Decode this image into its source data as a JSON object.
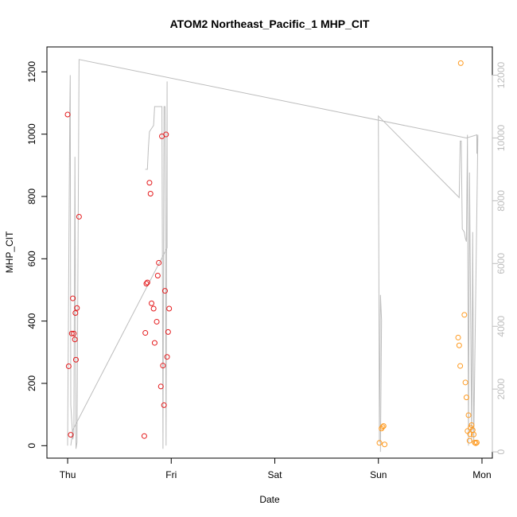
{
  "chart_data": {
    "type": "scatter",
    "title": "ATOM2 Northeast_Pacific_1 MHP_CIT",
    "xlabel": "Date",
    "ylabel": "MHP_CIT",
    "x_ticks": [
      "Thu",
      "Fri",
      "Sat",
      "Sun",
      "Mon"
    ],
    "xlim_days": [
      -0.2,
      4.1
    ],
    "ylim": [
      -40,
      1280
    ],
    "yticks": [
      0,
      200,
      400,
      600,
      800,
      1000,
      1200
    ],
    "y2lim": [
      -200,
      12900
    ],
    "y2ticks": [
      0,
      2000,
      4000,
      6000,
      8000,
      10000,
      12000
    ],
    "grid": false,
    "colors": {
      "red": "#e41a1c",
      "orange": "#ff9a1f",
      "line": "#bdbdbd",
      "axis": "#000000",
      "axis2": "#bdbdbd"
    },
    "series": [
      {
        "color": "red",
        "points": [
          {
            "x": 0.0,
            "y": 1063
          },
          {
            "x": 0.01,
            "y": 255
          },
          {
            "x": 0.03,
            "y": 35
          },
          {
            "x": 0.04,
            "y": 360
          },
          {
            "x": 0.05,
            "y": 473
          },
          {
            "x": 0.06,
            "y": 360
          },
          {
            "x": 0.07,
            "y": 341
          },
          {
            "x": 0.075,
            "y": 426
          },
          {
            "x": 0.08,
            "y": 276
          },
          {
            "x": 0.09,
            "y": 442
          },
          {
            "x": 0.11,
            "y": 735
          },
          {
            "x": 0.74,
            "y": 31
          },
          {
            "x": 0.75,
            "y": 362
          },
          {
            "x": 0.76,
            "y": 520
          },
          {
            "x": 0.77,
            "y": 524
          },
          {
            "x": 0.79,
            "y": 844
          },
          {
            "x": 0.8,
            "y": 809
          },
          {
            "x": 0.81,
            "y": 457
          },
          {
            "x": 0.83,
            "y": 440
          },
          {
            "x": 0.84,
            "y": 330
          },
          {
            "x": 0.86,
            "y": 398
          },
          {
            "x": 0.87,
            "y": 546
          },
          {
            "x": 0.88,
            "y": 587
          },
          {
            "x": 0.9,
            "y": 190
          },
          {
            "x": 0.91,
            "y": 993
          },
          {
            "x": 0.92,
            "y": 257
          },
          {
            "x": 0.93,
            "y": 130
          },
          {
            "x": 0.94,
            "y": 497
          },
          {
            "x": 0.95,
            "y": 999
          },
          {
            "x": 0.96,
            "y": 285
          },
          {
            "x": 0.97,
            "y": 365
          },
          {
            "x": 0.98,
            "y": 440
          }
        ]
      },
      {
        "color": "orange",
        "points": [
          {
            "x": 3.01,
            "y": 9
          },
          {
            "x": 3.03,
            "y": 55
          },
          {
            "x": 3.04,
            "y": 60
          },
          {
            "x": 3.05,
            "y": 63
          },
          {
            "x": 3.06,
            "y": 4
          },
          {
            "x": 3.77,
            "y": 347
          },
          {
            "x": 3.78,
            "y": 322
          },
          {
            "x": 3.79,
            "y": 256
          },
          {
            "x": 3.795,
            "y": 1228
          },
          {
            "x": 3.83,
            "y": 420
          },
          {
            "x": 3.84,
            "y": 203
          },
          {
            "x": 3.85,
            "y": 155
          },
          {
            "x": 3.86,
            "y": 47
          },
          {
            "x": 3.87,
            "y": 98
          },
          {
            "x": 3.88,
            "y": 16
          },
          {
            "x": 3.885,
            "y": 37
          },
          {
            "x": 3.89,
            "y": 58
          },
          {
            "x": 3.9,
            "y": 66
          },
          {
            "x": 3.91,
            "y": 50
          },
          {
            "x": 3.92,
            "y": 36
          },
          {
            "x": 3.93,
            "y": 10
          },
          {
            "x": 3.94,
            "y": 8
          },
          {
            "x": 3.95,
            "y": 10
          }
        ]
      }
    ],
    "line_series": {
      "axis": "right",
      "color": "line",
      "points": [
        {
          "x": 0.0,
          "y": 200
        },
        {
          "x": 0.02,
          "y": 10700
        },
        {
          "x": 0.025,
          "y": 12000
        },
        {
          "x": 0.03,
          "y": 1500
        },
        {
          "x": 0.05,
          "y": 400
        },
        {
          "x": 0.06,
          "y": 600
        },
        {
          "x": 0.07,
          "y": 9400
        },
        {
          "x": 0.08,
          "y": 100
        },
        {
          "x": 0.09,
          "y": 300
        },
        {
          "x": 0.11,
          "y": 12500
        },
        {
          "x": 3.85,
          "y": 10000
        },
        {
          "x": 3.95,
          "y": 10100
        },
        {
          "x": 3.95,
          "y": 9500
        },
        {
          "x": 3.96,
          "y": 10100
        },
        {
          "x": 3.92,
          "y": 300
        },
        {
          "x": 3.91,
          "y": 7000
        },
        {
          "x": 3.9,
          "y": 300
        },
        {
          "x": 3.88,
          "y": 8900
        },
        {
          "x": 3.87,
          "y": 200
        },
        {
          "x": 3.86,
          "y": 10100
        },
        {
          "x": 3.85,
          "y": 6700
        },
        {
          "x": 3.84,
          "y": 6800
        },
        {
          "x": 3.83,
          "y": 7000
        },
        {
          "x": 3.81,
          "y": 7100
        },
        {
          "x": 3.8,
          "y": 9900
        },
        {
          "x": 3.79,
          "y": 9900
        },
        {
          "x": 3.78,
          "y": 8100
        },
        {
          "x": 3.0,
          "y": 10700
        },
        {
          "x": 3.01,
          "y": 300
        },
        {
          "x": 3.02,
          "y": 5000
        },
        {
          "x": 3.03,
          "y": 4200
        },
        {
          "x": 3.02,
          "y": 0
        }
      ]
    },
    "line_series_2": {
      "axis": "right",
      "color": "line",
      "points": [
        {
          "x": 0.03,
          "y": 200
        },
        {
          "x": 0.05,
          "y": 700
        },
        {
          "x": 0.96,
          "y": 6500
        },
        {
          "x": 0.96,
          "y": 11800
        },
        {
          "x": 0.95,
          "y": 200
        },
        {
          "x": 0.94,
          "y": 11000
        },
        {
          "x": 0.93,
          "y": 11000
        },
        {
          "x": 0.92,
          "y": 100
        },
        {
          "x": 0.91,
          "y": 11000
        },
        {
          "x": 0.9,
          "y": 11000
        },
        {
          "x": 0.88,
          "y": 11000
        },
        {
          "x": 0.86,
          "y": 11000
        },
        {
          "x": 0.84,
          "y": 11000
        },
        {
          "x": 0.83,
          "y": 10400
        },
        {
          "x": 0.81,
          "y": 10300
        },
        {
          "x": 0.79,
          "y": 10200
        },
        {
          "x": 0.78,
          "y": 9700
        },
        {
          "x": 0.77,
          "y": 9000
        },
        {
          "x": 0.75,
          "y": 9000
        }
      ]
    }
  }
}
